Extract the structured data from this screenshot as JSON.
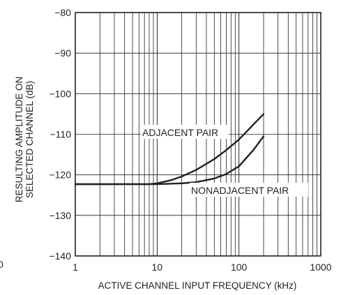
{
  "chart_data": {
    "type": "line",
    "xlabel": "ACTIVE CHANNEL INPUT FREQUENCY (kHz)",
    "ylabel_lines": [
      "RESULTING AMPLITUDE ON",
      "SELECTED CHANNEL (dB)"
    ],
    "x_scale": "log",
    "xlim": [
      1,
      1000
    ],
    "ylim": [
      -140,
      -80
    ],
    "x_ticks": [
      1,
      10,
      100,
      1000
    ],
    "x_tick_labels": [
      "1",
      "10",
      "100",
      "1000"
    ],
    "y_ticks": [
      -80,
      -90,
      -100,
      -110,
      -120,
      -130,
      -140
    ],
    "y_tick_labels": [
      "−80",
      "−90",
      "−100",
      "−110",
      "−120",
      "−130",
      "−140"
    ],
    "grid": true,
    "series": [
      {
        "name": "ADJACENT PAIR",
        "x": [
          1,
          5,
          8,
          10,
          15,
          20,
          30,
          50,
          70,
          100,
          150,
          200
        ],
        "y": [
          -122.3,
          -122.3,
          -122.3,
          -122.1,
          -121.3,
          -120.4,
          -118.8,
          -116.1,
          -113.9,
          -111.3,
          -107.6,
          -105
        ]
      },
      {
        "name": "NONADJACENT PAIR",
        "x": [
          1,
          10,
          20,
          30,
          50,
          70,
          100,
          150,
          200
        ],
        "y": [
          -122.3,
          -122.3,
          -122.1,
          -121.8,
          -120.9,
          -119.8,
          -117.9,
          -113.9,
          -110.5
        ]
      }
    ]
  },
  "annotations": {
    "stray_left": "0"
  }
}
